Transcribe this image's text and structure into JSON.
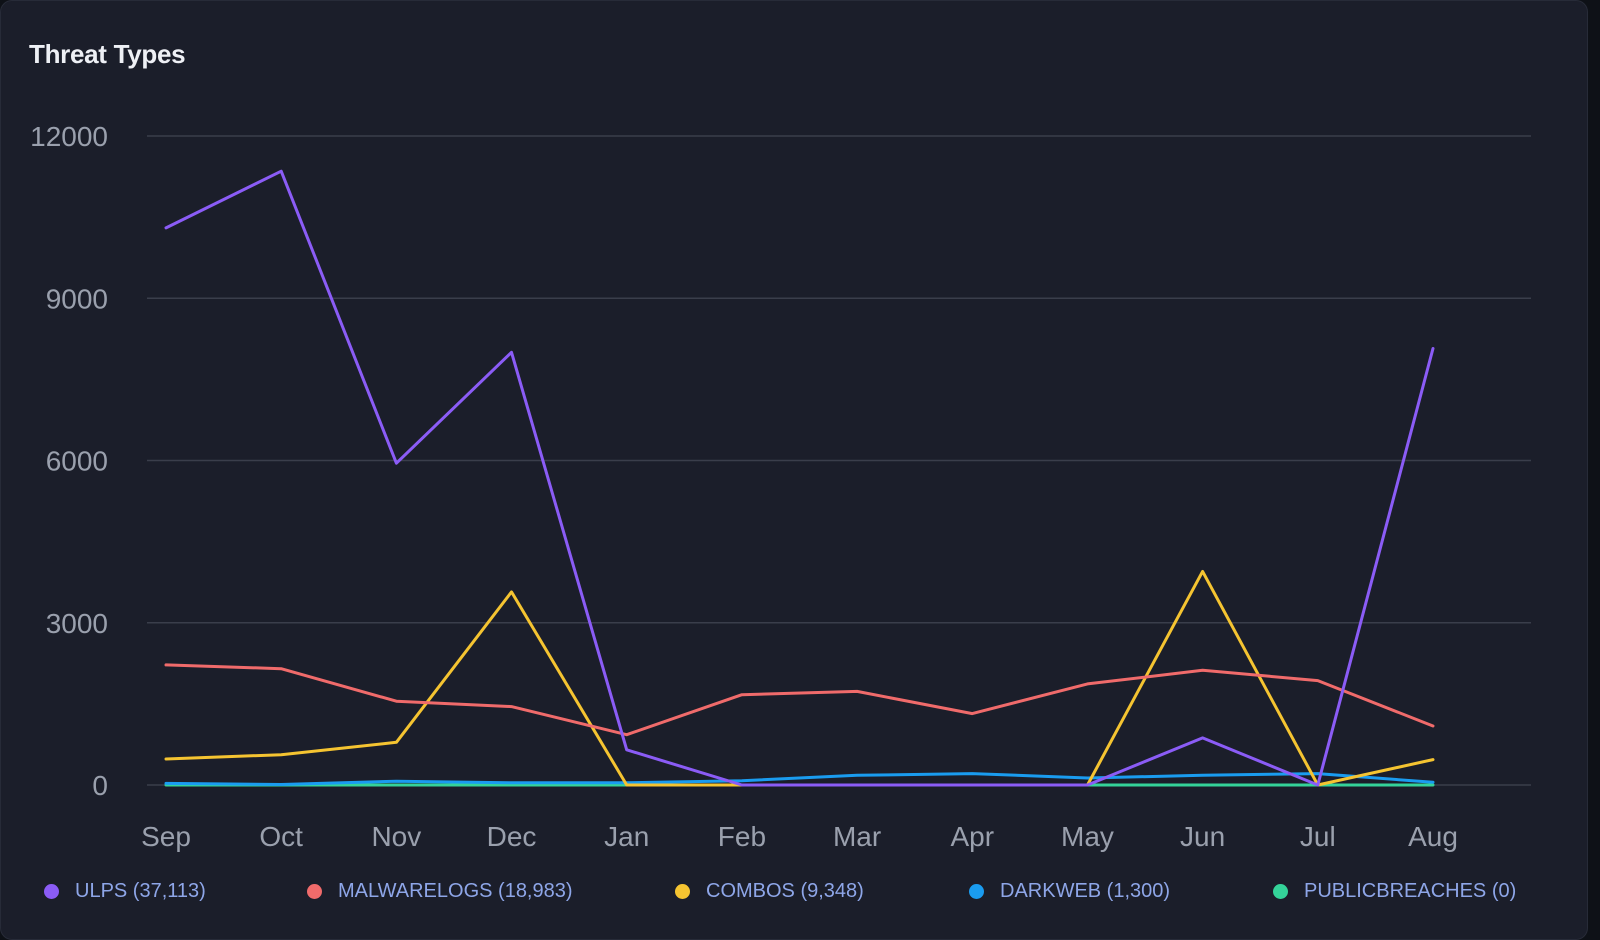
{
  "panel": {
    "title": "Threat Types"
  },
  "chart_data": {
    "type": "line",
    "title": "Threat Types",
    "xlabel": "",
    "ylabel": "",
    "categories": [
      "Sep",
      "Oct",
      "Nov",
      "Dec",
      "Jan",
      "Feb",
      "Mar",
      "Apr",
      "May",
      "Jun",
      "Jul",
      "Aug"
    ],
    "ylim": [
      0,
      12000
    ],
    "yticks": [
      0,
      3000,
      6000,
      9000,
      12000
    ],
    "grid": true,
    "legend_position": "bottom",
    "series": [
      {
        "name": "ULPS",
        "legend_label": "ULPS (37,113)",
        "color": "#8b5cf6",
        "values": [
          10300,
          11350,
          5950,
          8000,
          650,
          0,
          0,
          0,
          0,
          870,
          0,
          8070
        ]
      },
      {
        "name": "MALWARELOGS",
        "legend_label": "MALWARELOGS (18,983)",
        "color": "#f06b6b",
        "values": [
          2220,
          2150,
          1550,
          1450,
          930,
          1670,
          1730,
          1320,
          1870,
          2120,
          1930,
          1090
        ]
      },
      {
        "name": "COMBOS",
        "legend_label": "COMBOS (9,348)",
        "color": "#f5c431",
        "values": [
          480,
          560,
          790,
          3570,
          0,
          0,
          0,
          0,
          0,
          3950,
          0,
          470
        ]
      },
      {
        "name": "DARKWEB",
        "legend_label": "DARKWEB (1,300)",
        "color": "#1a9cf0",
        "values": [
          30,
          10,
          70,
          40,
          40,
          80,
          180,
          210,
          130,
          180,
          210,
          50
        ]
      },
      {
        "name": "PUBLICBREACHES",
        "legend_label": "PUBLICBREACHES (0)",
        "color": "#34d399",
        "values": [
          0,
          0,
          0,
          0,
          0,
          0,
          0,
          0,
          0,
          0,
          0,
          0
        ]
      }
    ]
  }
}
